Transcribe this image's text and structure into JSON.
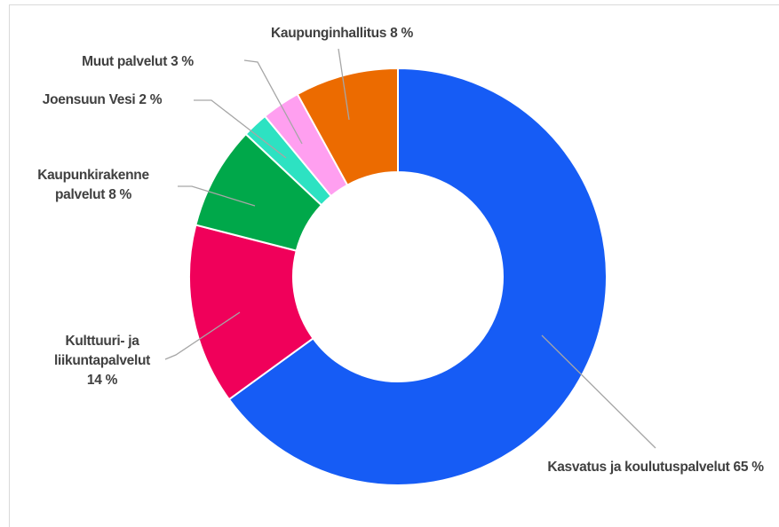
{
  "chart_data": {
    "type": "donut",
    "categories": [
      "Kasvatus ja koulutuspalvelut",
      "Kulttuuri- ja liikuntapalvelut",
      "Kaupunkirakenne palvelut",
      "Joensuun Vesi",
      "Muut palvelut",
      "Kaupunginhallitus"
    ],
    "values": [
      65,
      14,
      8,
      2,
      3,
      8
    ],
    "value_labels": [
      "65 %",
      "14 %",
      "8 %",
      "2 %",
      "3 %",
      "8 %"
    ],
    "colors": [
      "#165cf5",
      "#f0005a",
      "#00a84a",
      "#2de2c2",
      "#ff9ff0",
      "#ec6b00"
    ]
  }
}
